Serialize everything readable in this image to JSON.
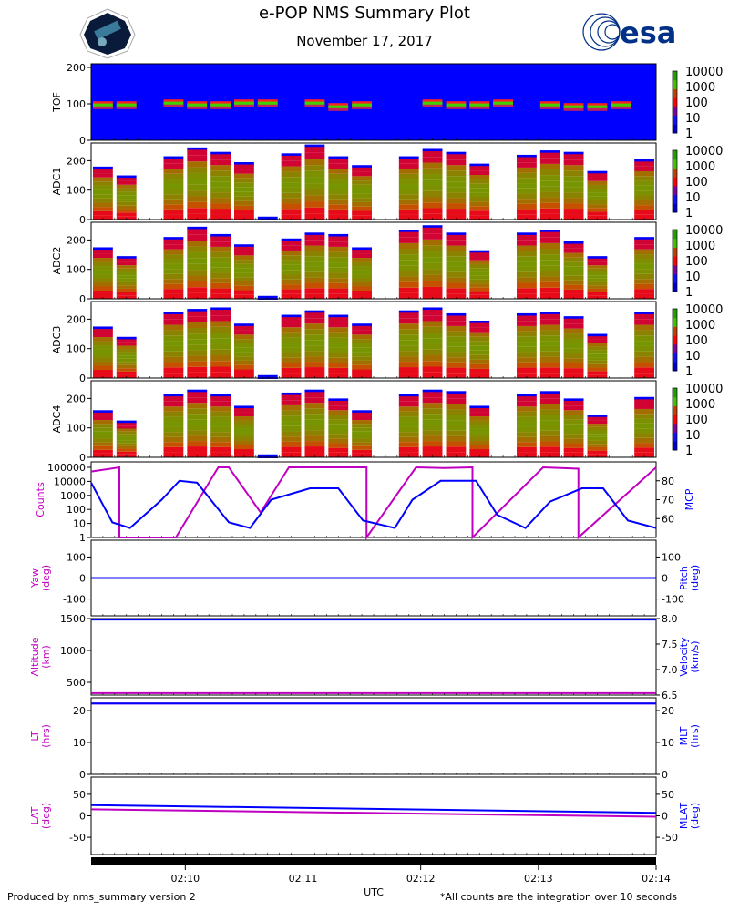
{
  "header": {
    "title": "e-POP NMS Summary Plot",
    "date": "November 17, 2017",
    "logo_left": "e-POP mission patch",
    "logo_right": "esa"
  },
  "footer": {
    "left": "Produced by nms_summary version 2",
    "right": "*All counts are the integration over 10 seconds",
    "xlabel": "UTC"
  },
  "colors": {
    "magenta": "#c000c0",
    "blue": "#0000ff",
    "green": "#40c000",
    "red": "#ff0000",
    "esa_blue": "#003087"
  },
  "chart_data": [
    {
      "type": "heatmap",
      "ylabel": "TOF",
      "ylim": [
        0,
        210
      ],
      "yticks": [
        0,
        100,
        200
      ],
      "colorbar": {
        "scale": "log",
        "ticks": [
          "1",
          "10",
          "100",
          "1000",
          "10000"
        ]
      },
      "x_range": [
        "02:09:12",
        "02:14:00"
      ],
      "segments": [
        0,
        1,
        2,
        3,
        4,
        5,
        6,
        7,
        8,
        9,
        10,
        11,
        12,
        13,
        14,
        15,
        16,
        17,
        18,
        19,
        20,
        21,
        22,
        23
      ],
      "peak_mass": [
        95,
        95,
        null,
        100,
        95,
        95,
        100,
        100,
        null,
        100,
        90,
        95,
        null,
        null,
        100,
        95,
        95,
        100,
        null,
        95,
        90,
        90,
        95,
        null
      ]
    },
    {
      "type": "heatmap",
      "ylabel": "ADC1",
      "ylim": [
        0,
        260
      ],
      "yticks": [
        0,
        100,
        200
      ],
      "colorbar": {
        "scale": "log",
        "ticks": [
          "1",
          "10",
          "100",
          "1000",
          "10000"
        ]
      },
      "max_values": [
        180,
        150,
        null,
        215,
        245,
        230,
        195,
        10,
        225,
        255,
        215,
        185,
        null,
        215,
        240,
        230,
        190,
        null,
        220,
        235,
        230,
        165,
        null,
        205
      ]
    },
    {
      "type": "heatmap",
      "ylabel": "ADC2",
      "ylim": [
        0,
        260
      ],
      "yticks": [
        0,
        100,
        200
      ],
      "colorbar": {
        "scale": "log",
        "ticks": [
          "1",
          "10",
          "100",
          "1000",
          "10000"
        ]
      },
      "max_values": [
        175,
        145,
        null,
        210,
        245,
        220,
        185,
        10,
        205,
        225,
        220,
        175,
        null,
        235,
        250,
        225,
        165,
        null,
        225,
        235,
        195,
        145,
        null,
        210
      ]
    },
    {
      "type": "heatmap",
      "ylabel": "ADC3",
      "ylim": [
        0,
        260
      ],
      "yticks": [
        0,
        100,
        200
      ],
      "colorbar": {
        "scale": "log",
        "ticks": [
          "1",
          "10",
          "100",
          "1000",
          "10000"
        ]
      },
      "max_values": [
        175,
        140,
        null,
        225,
        235,
        240,
        185,
        10,
        215,
        230,
        215,
        185,
        null,
        230,
        240,
        220,
        195,
        null,
        220,
        225,
        210,
        150,
        null,
        225
      ]
    },
    {
      "type": "heatmap",
      "ylabel": "ADC4",
      "ylim": [
        0,
        260
      ],
      "yticks": [
        0,
        100,
        200
      ],
      "colorbar": {
        "scale": "log",
        "ticks": [
          "1",
          "10",
          "100",
          "1000",
          "10000"
        ]
      },
      "max_values": [
        160,
        125,
        null,
        215,
        230,
        215,
        175,
        10,
        220,
        230,
        200,
        160,
        null,
        215,
        230,
        225,
        175,
        null,
        215,
        225,
        200,
        145,
        null,
        205
      ]
    },
    {
      "type": "line",
      "ylabel_left": "Counts",
      "ylabel_right": "MCP",
      "left_scale": "log",
      "left_yticks": [
        "1",
        "10",
        "100",
        "1000",
        "10000",
        "100000"
      ],
      "right_yticks": [
        "60",
        "70",
        "80"
      ],
      "right_ylim": [
        50,
        90
      ],
      "series": [
        {
          "name": "Counts",
          "color": "magenta",
          "x": [
            0,
            0.4,
            0.4,
            1.2,
            1.8,
            1.95,
            2.4,
            2.8,
            3.9,
            3.9,
            4.6,
            5.0,
            5.4,
            5.4,
            6.4,
            6.9,
            6.9,
            8.0
          ],
          "y": [
            50000,
            100000,
            1,
            1,
            100000,
            100000,
            60,
            100000,
            100000,
            1,
            100000,
            90000,
            100000,
            1,
            100000,
            80000,
            1,
            100000
          ]
        },
        {
          "name": "MCP",
          "color": "blue",
          "x": [
            0,
            0.3,
            0.55,
            1.0,
            1.25,
            1.5,
            1.95,
            2.25,
            2.55,
            3.1,
            3.5,
            3.85,
            4.3,
            4.55,
            4.95,
            5.45,
            5.75,
            6.15,
            6.5,
            6.95,
            7.25,
            7.6,
            8.0
          ],
          "y": [
            79,
            58,
            55,
            70,
            80,
            79,
            58,
            55,
            70,
            76,
            76,
            59,
            55,
            70,
            80,
            80,
            62,
            55,
            69,
            76,
            76,
            59,
            55
          ]
        }
      ]
    },
    {
      "type": "line",
      "ylabel_left": "Yaw\n(deg)",
      "ylabel_right": "Pitch\n(deg)",
      "ylim": [
        -180,
        180
      ],
      "left_yticks": [
        "-100",
        "0",
        "100"
      ],
      "right_yticks": [
        "-100",
        "0",
        "100"
      ],
      "series": [
        {
          "name": "Yaw",
          "color": "magenta",
          "values": [
            0,
            0
          ]
        },
        {
          "name": "Pitch",
          "color": "blue",
          "values": [
            0,
            0
          ]
        }
      ]
    },
    {
      "type": "line",
      "ylabel_left": "Altitude\n(km)",
      "ylabel_right": "Velocity\n(km/s)",
      "left_ylim": [
        300,
        1500
      ],
      "right_ylim": [
        6.5,
        8.0
      ],
      "left_yticks": [
        "500",
        "1000",
        "1500"
      ],
      "right_yticks": [
        "6.5",
        "7.0",
        "7.5",
        "8.0"
      ],
      "series": [
        {
          "name": "Altitude",
          "color": "magenta",
          "values": [
            330,
            330
          ]
        },
        {
          "name": "Velocity",
          "color": "blue",
          "values": [
            7.98,
            7.98
          ]
        }
      ]
    },
    {
      "type": "line",
      "ylabel_left": "LT\n(hrs)",
      "ylabel_right": "MLT\n(hrs)",
      "ylim": [
        0,
        24
      ],
      "left_yticks": [
        "0",
        "10",
        "20"
      ],
      "right_yticks": [
        "0",
        "10",
        "20"
      ],
      "series": [
        {
          "name": "LT",
          "color": "magenta",
          "values": [
            22.2,
            22.2
          ]
        },
        {
          "name": "MLT",
          "color": "blue",
          "values": [
            22.2,
            22.2
          ]
        }
      ]
    },
    {
      "type": "line",
      "ylabel_left": "LAT\n(deg)",
      "ylabel_right": "MLAT\n(deg)",
      "ylim": [
        -90,
        90
      ],
      "left_yticks": [
        "-50",
        "0",
        "50"
      ],
      "right_yticks": [
        "-50",
        "0",
        "50"
      ],
      "series": [
        {
          "name": "LAT",
          "color": "magenta",
          "values": [
            15,
            -2
          ]
        },
        {
          "name": "MLAT",
          "color": "blue",
          "values": [
            25,
            7
          ]
        }
      ]
    }
  ],
  "x_axis": {
    "ticks": [
      "02:10",
      "02:11",
      "02:12",
      "02:13",
      "02:14"
    ],
    "tick_minutes_offset": [
      0.8,
      1.8,
      2.8,
      3.8,
      4.8
    ],
    "span_minutes": 4.8
  }
}
